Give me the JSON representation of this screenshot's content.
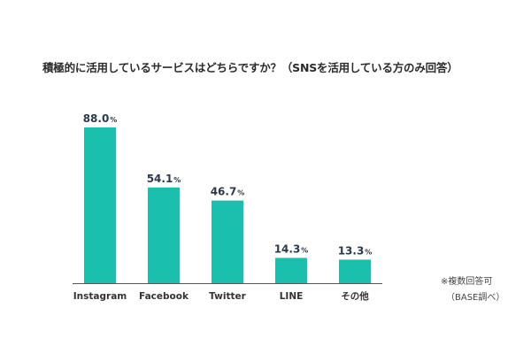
{
  "chart_data": {
    "type": "bar",
    "title": "積極的に活用しているサービスはどちらですか？（SNSを活用している方のみ回答）",
    "xlabel": "",
    "ylabel": "",
    "unit": "%",
    "categories": [
      "Instagram",
      "Facebook",
      "Twitter",
      "LINE",
      "その他"
    ],
    "values": [
      88.0,
      54.1,
      46.7,
      14.3,
      13.3
    ],
    "value_labels": [
      "88.0",
      "54.1",
      "46.7",
      "14.3",
      "13.3"
    ],
    "ylim": [
      0,
      100
    ],
    "grid": false,
    "legend": "none",
    "bar_color": "#1bbfae",
    "axis_color": "#555555"
  },
  "notes": {
    "line1": "※複数回答可",
    "line2": "（BASE調べ）"
  }
}
